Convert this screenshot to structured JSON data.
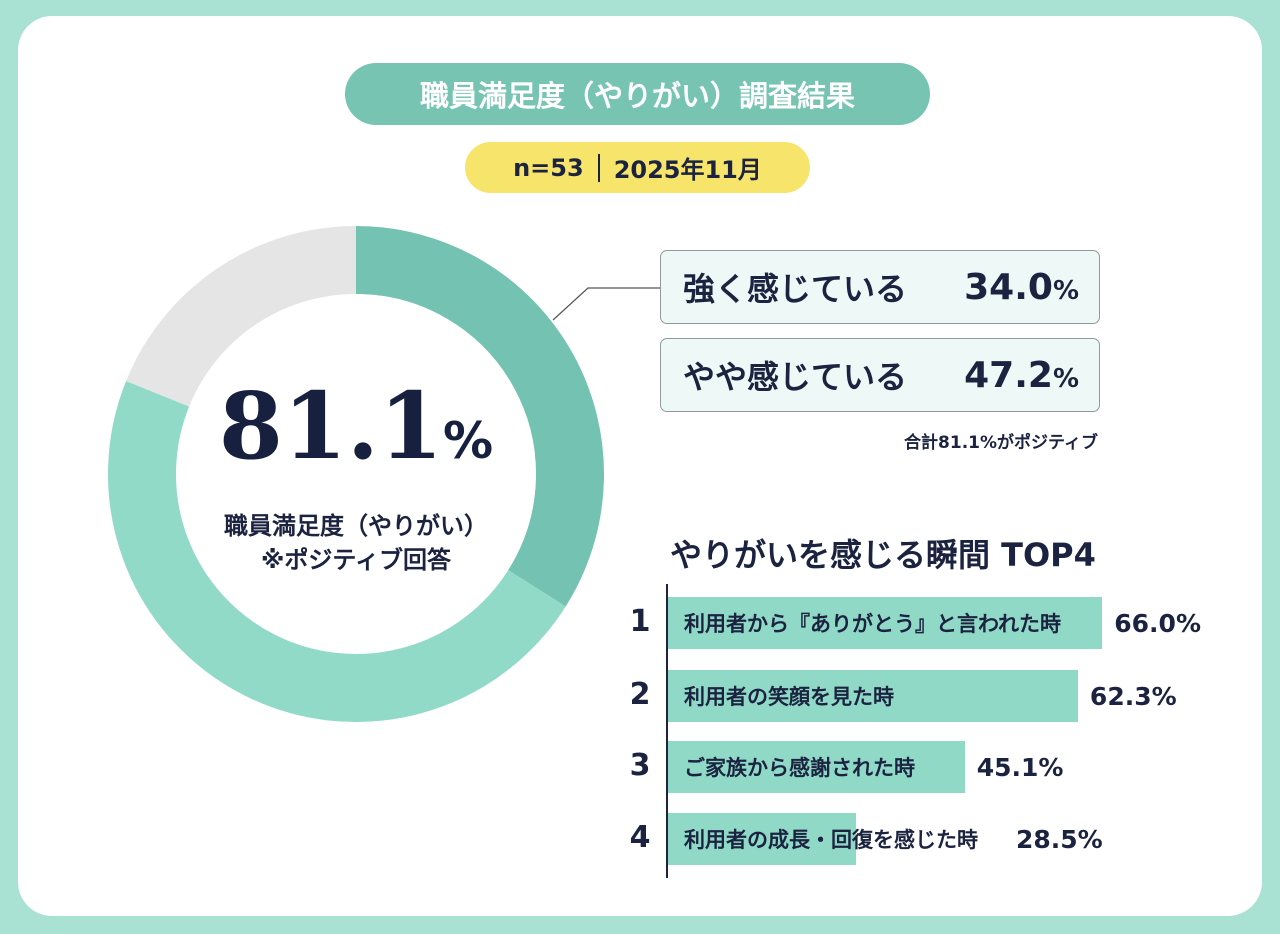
{
  "title": "職員満足度（やりがい）調査結果",
  "meta": {
    "n": "n=53",
    "date": "2025年11月"
  },
  "colors": {
    "strong": "#74c2b1",
    "somewhat": "#92dac8",
    "other": "#e5e5e5",
    "frame": "#a9e2d3",
    "title_pill": "#78c4b2",
    "meta_pill": "#f6e46b",
    "bar": "#8fd9c6",
    "text": "#1b2340"
  },
  "center": {
    "value": "81.1",
    "unit": "%",
    "label": "職員満足度（やりがい）",
    "note": "※ポジティブ回答"
  },
  "breakdown": [
    {
      "label": "強く感じている",
      "value": "34.0",
      "unit": "%"
    },
    {
      "label": "やや感じている",
      "value": "47.2",
      "unit": "%"
    }
  ],
  "breakdown_note": "合計81.1%がポジティブ",
  "chart_data": [
    {
      "type": "pie",
      "donut": true,
      "slices": [
        {
          "label": "強く感じている",
          "value": 34.0,
          "color": "#74c2b1"
        },
        {
          "label": "やや感じている",
          "value": 47.2,
          "color": "#92dac8"
        },
        {
          "value": 18.9,
          "color": "#e5e5e5"
        }
      ],
      "center_text": "81.1%"
    },
    {
      "type": "bar",
      "orientation": "horizontal",
      "title": "やりがいを感じる瞬間 TOP4",
      "ranks": [
        "1",
        "2",
        "3",
        "4"
      ],
      "categories": [
        "利用者から『ありがとう』と言われた時",
        "利用者の笑顔を見た時",
        "ご家族から感謝された時",
        "利用者の成長・回復を感じた時"
      ],
      "values": [
        66.0,
        62.3,
        45.1,
        28.5
      ],
      "value_labels": [
        "66.0%",
        "62.3%",
        "45.1%",
        "28.5%"
      ],
      "grid": false
    }
  ]
}
